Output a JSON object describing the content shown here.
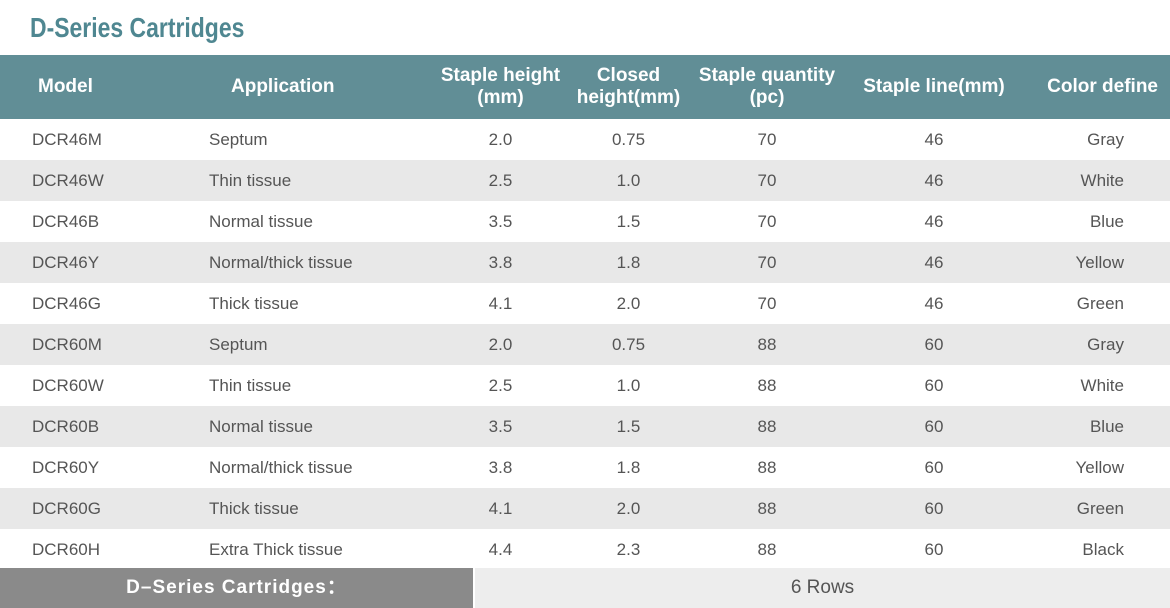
{
  "title": "D-Series Cartridges",
  "headers": {
    "model": "Model",
    "application": "Application",
    "staple_height_l1": "Staple height",
    "staple_height_l2": "(mm)",
    "closed_height_l1": "Closed",
    "closed_height_l2": "height(mm)",
    "staple_quantity_l1": "Staple quantity",
    "staple_quantity_l2": "(pc)",
    "staple_line": "Staple line(mm)",
    "color_define": "Color define"
  },
  "rows": [
    {
      "model": "DCR46M",
      "application": "Septum",
      "staple_height": "2.0",
      "closed_height": "0.75",
      "staple_quantity": "70",
      "staple_line": "46",
      "color": "Gray"
    },
    {
      "model": "DCR46W",
      "application": "Thin tissue",
      "staple_height": "2.5",
      "closed_height": "1.0",
      "staple_quantity": "70",
      "staple_line": "46",
      "color": "White"
    },
    {
      "model": "DCR46B",
      "application": "Normal tissue",
      "staple_height": "3.5",
      "closed_height": "1.5",
      "staple_quantity": "70",
      "staple_line": "46",
      "color": "Blue"
    },
    {
      "model": "DCR46Y",
      "application": "Normal/thick tissue",
      "staple_height": "3.8",
      "closed_height": "1.8",
      "staple_quantity": "70",
      "staple_line": "46",
      "color": "Yellow"
    },
    {
      "model": "DCR46G",
      "application": "Thick tissue",
      "staple_height": "4.1",
      "closed_height": "2.0",
      "staple_quantity": "70",
      "staple_line": "46",
      "color": "Green"
    },
    {
      "model": "DCR60M",
      "application": "Septum",
      "staple_height": "2.0",
      "closed_height": "0.75",
      "staple_quantity": "88",
      "staple_line": "60",
      "color": "Gray"
    },
    {
      "model": "DCR60W",
      "application": "Thin tissue",
      "staple_height": "2.5",
      "closed_height": "1.0",
      "staple_quantity": "88",
      "staple_line": "60",
      "color": "White"
    },
    {
      "model": "DCR60B",
      "application": "Normal tissue",
      "staple_height": "3.5",
      "closed_height": "1.5",
      "staple_quantity": "88",
      "staple_line": "60",
      "color": "Blue"
    },
    {
      "model": "DCR60Y",
      "application": "Normal/thick tissue",
      "staple_height": "3.8",
      "closed_height": "1.8",
      "staple_quantity": "88",
      "staple_line": "60",
      "color": "Yellow"
    },
    {
      "model": "DCR60G",
      "application": "Thick tissue",
      "staple_height": "4.1",
      "closed_height": "2.0",
      "staple_quantity": "88",
      "staple_line": "60",
      "color": "Green"
    },
    {
      "model": "DCR60H",
      "application": "Extra Thick tissue",
      "staple_height": "4.4",
      "closed_height": "2.3",
      "staple_quantity": "88",
      "staple_line": "60",
      "color": "Black"
    }
  ],
  "footer": {
    "label": "D–Series Cartridges：",
    "value": "6 Rows"
  },
  "colors": {
    "title": "#4f8791",
    "header_bg": "#618e96",
    "footer_label_bg": "#8a8a8a",
    "stripe": "#e8e8e8"
  }
}
